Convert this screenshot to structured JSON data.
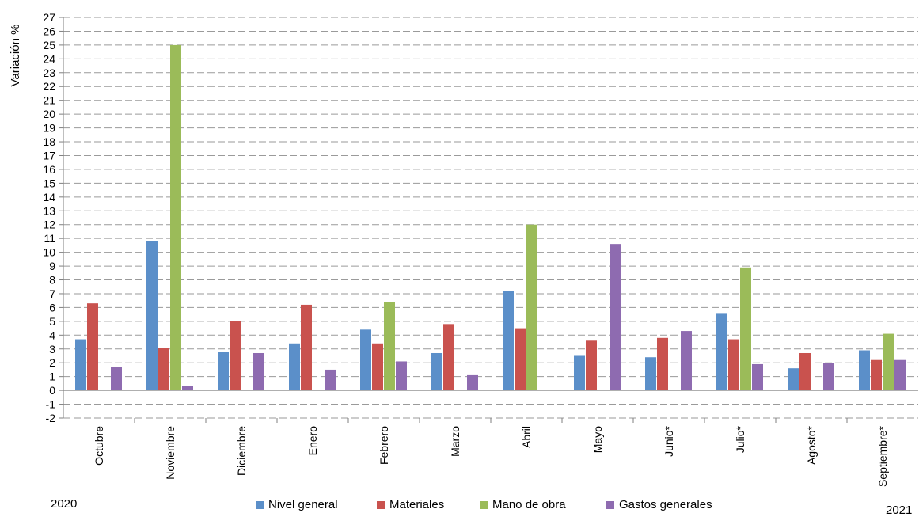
{
  "chart_data": {
    "type": "bar",
    "ylabel": "Variación  %",
    "ylim": [
      -2,
      27
    ],
    "yticks": [
      -2,
      -1,
      0,
      1,
      2,
      3,
      4,
      5,
      6,
      7,
      8,
      9,
      10,
      11,
      12,
      13,
      14,
      15,
      16,
      17,
      18,
      19,
      20,
      21,
      22,
      23,
      24,
      25,
      26,
      27
    ],
    "grid": true,
    "legend_position": "bottom",
    "categories": [
      "Octubre",
      "Noviembre",
      "Diciembre",
      "Enero",
      "Febrero",
      "Marzo",
      "Abril",
      "Mayo",
      "Junio*",
      "Julio*",
      "Agosto*",
      "Septiembre*"
    ],
    "series": [
      {
        "name": "Nivel general",
        "color": "#5b8fc9",
        "values": [
          3.7,
          10.8,
          2.8,
          3.4,
          4.4,
          2.7,
          7.2,
          2.5,
          2.4,
          5.6,
          1.6,
          2.9
        ]
      },
      {
        "name": "Materiales",
        "color": "#c9524e",
        "values": [
          6.3,
          3.1,
          5.0,
          6.2,
          3.4,
          4.8,
          4.5,
          3.6,
          3.8,
          3.7,
          2.7,
          2.2
        ]
      },
      {
        "name": "Mano de obra",
        "color": "#9bbb59",
        "values": [
          0,
          25.0,
          0,
          0,
          6.4,
          0,
          12.0,
          0,
          0,
          8.9,
          0,
          4.1
        ]
      },
      {
        "name": "Gastos generales",
        "color": "#8e6bb0",
        "values": [
          1.7,
          0.3,
          2.7,
          1.5,
          2.1,
          1.1,
          0,
          10.6,
          4.3,
          1.9,
          2.0,
          2.2
        ]
      }
    ],
    "year_start": "2020",
    "year_end": "2021"
  }
}
